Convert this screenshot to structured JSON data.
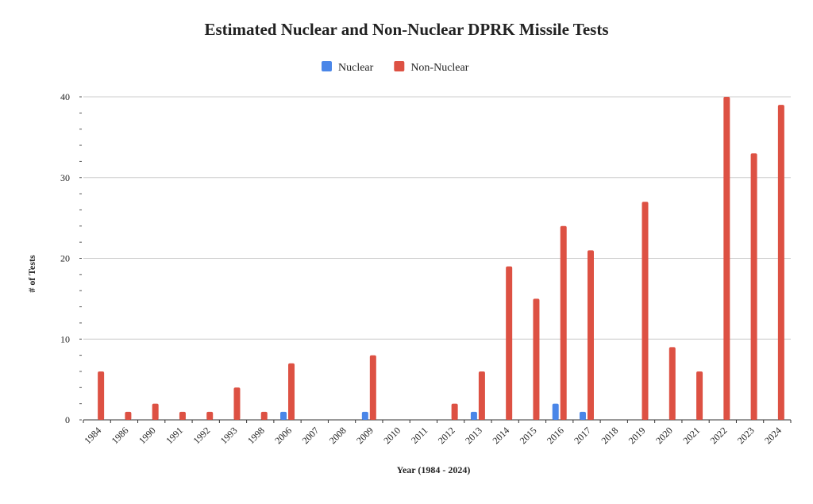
{
  "chart_data": {
    "type": "bar",
    "title": "Estimated Nuclear and Non-Nuclear DPRK Missile Tests",
    "x_label": "Year (1984 - 2024)",
    "y_label": "# of Tests",
    "categories": [
      "1984",
      "1986",
      "1990",
      "1991",
      "1992",
      "1993",
      "1998",
      "2006",
      "2007",
      "2008",
      "2009",
      "2010",
      "2011",
      "2012",
      "2013",
      "2014",
      "2015",
      "2016",
      "2017",
      "2018",
      "2019",
      "2020",
      "2021",
      "2022",
      "2023",
      "2024"
    ],
    "series": [
      {
        "name": "Nuclear",
        "color": "#4a86e8",
        "values": [
          0,
          0,
          0,
          0,
          0,
          0,
          0,
          1,
          0,
          0,
          1,
          0,
          0,
          0,
          1,
          0,
          0,
          2,
          1,
          0,
          0,
          0,
          0,
          0,
          0,
          0
        ]
      },
      {
        "name": "Non-Nuclear",
        "color": "#dd5143",
        "values": [
          6,
          1,
          2,
          1,
          1,
          4,
          1,
          7,
          0,
          0,
          8,
          0,
          0,
          2,
          6,
          19,
          15,
          24,
          21,
          0,
          27,
          9,
          6,
          40,
          33,
          39
        ]
      }
    ],
    "ylim": [
      0,
      40
    ],
    "yticks": [
      0,
      10,
      20,
      30,
      40
    ],
    "grid": true,
    "legend": "top"
  }
}
